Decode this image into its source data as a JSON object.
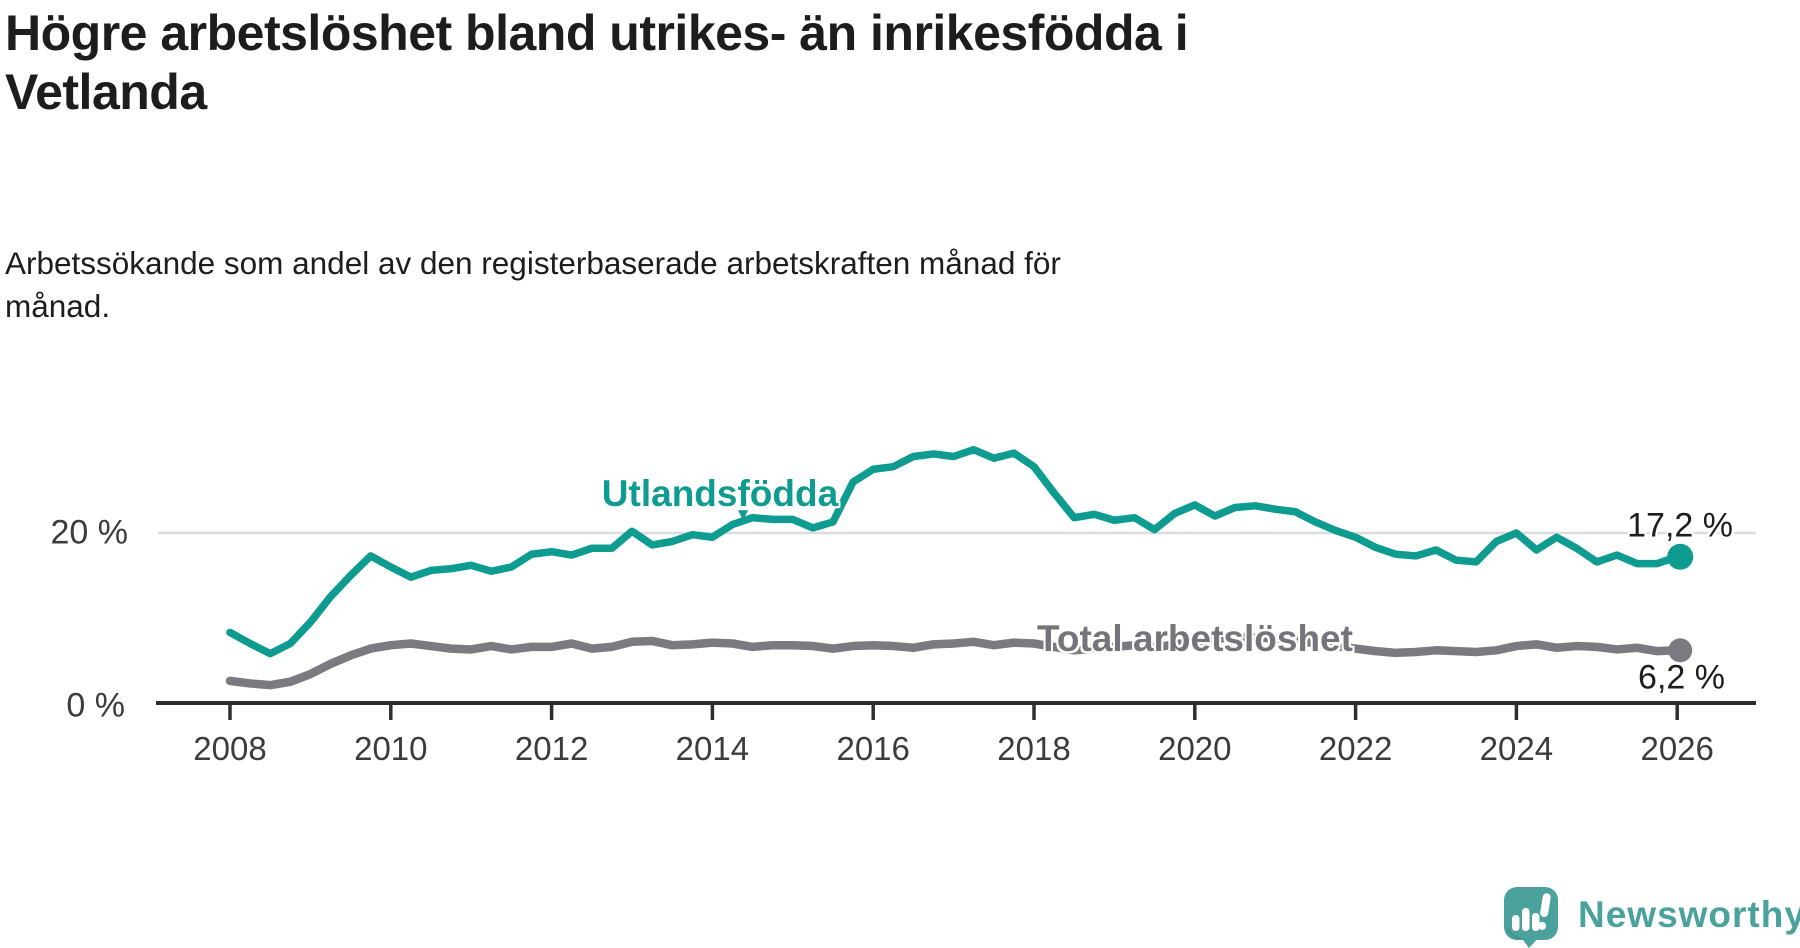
{
  "header": {
    "title": "Högre arbetslöshet bland utrikes- än inrikesfödda i\nVetlanda",
    "subtitle": "Arbetssökande som andel av den registerbaserade arbetskraften månad för\nmånad."
  },
  "chart_data": {
    "type": "line",
    "title": "Högre arbetslöshet bland utrikes- än inrikesfödda i Vetlanda",
    "xlabel": "",
    "ylabel": "Arbetssökande som andel av den registerbaserade arbetskraften",
    "x_unit": "decimal year, monthly curve approximated quarterly",
    "x": [
      2008.0,
      2008.25,
      2008.5,
      2008.75,
      2009.0,
      2009.25,
      2009.5,
      2009.75,
      2010.0,
      2010.25,
      2010.5,
      2010.75,
      2011.0,
      2011.25,
      2011.5,
      2011.75,
      2012.0,
      2012.25,
      2012.5,
      2012.75,
      2013.0,
      2013.25,
      2013.5,
      2013.75,
      2014.0,
      2014.25,
      2014.5,
      2014.75,
      2015.0,
      2015.25,
      2015.5,
      2015.75,
      2016.0,
      2016.25,
      2016.5,
      2016.75,
      2017.0,
      2017.25,
      2017.5,
      2017.75,
      2018.0,
      2018.25,
      2018.5,
      2018.75,
      2019.0,
      2019.25,
      2019.5,
      2019.75,
      2020.0,
      2020.25,
      2020.5,
      2020.75,
      2021.0,
      2021.25,
      2021.5,
      2021.75,
      2022.0,
      2022.25,
      2022.5,
      2022.75,
      2023.0,
      2023.25,
      2023.5,
      2023.75,
      2024.0,
      2024.25,
      2024.5,
      2024.75,
      2025.0,
      2025.25,
      2025.5,
      2025.75,
      2026.0
    ],
    "series": [
      {
        "name": "Utlandsfödda",
        "label_text": "Utlandsfödda",
        "color": "#0d9c8f",
        "end_label": "17,2 %",
        "last_value": 17.2,
        "values": [
          8.3,
          7.0,
          5.8,
          7.0,
          9.5,
          12.5,
          15.0,
          17.3,
          16.0,
          14.8,
          15.6,
          15.8,
          16.2,
          15.5,
          16.0,
          17.5,
          17.8,
          17.4,
          18.2,
          18.2,
          20.2,
          18.6,
          19.0,
          19.8,
          19.5,
          21.0,
          21.8,
          21.6,
          21.6,
          20.6,
          21.3,
          26.0,
          27.5,
          27.8,
          29.0,
          29.3,
          29.0,
          29.8,
          28.8,
          29.4,
          27.8,
          24.7,
          21.8,
          22.2,
          21.5,
          21.8,
          20.4,
          22.3,
          23.3,
          22.0,
          23.0,
          23.2,
          22.8,
          22.5,
          21.3,
          20.3,
          19.5,
          18.3,
          17.5,
          17.3,
          18.0,
          16.8,
          16.6,
          19.0,
          20.0,
          18.0,
          19.5,
          18.2,
          16.6,
          17.4,
          16.4,
          16.4,
          17.2
        ]
      },
      {
        "name": "Total arbetslöshet",
        "label_text": "Total arbetslöshet",
        "color": "#7b7a81",
        "end_label": "6,2 %",
        "last_value": 6.2,
        "values": [
          2.6,
          2.3,
          2.1,
          2.5,
          3.4,
          4.6,
          5.6,
          6.4,
          6.8,
          7.0,
          6.7,
          6.4,
          6.3,
          6.7,
          6.3,
          6.6,
          6.6,
          7.0,
          6.4,
          6.6,
          7.2,
          7.3,
          6.8,
          6.9,
          7.1,
          7.0,
          6.6,
          6.8,
          6.8,
          6.7,
          6.4,
          6.7,
          6.8,
          6.7,
          6.5,
          6.9,
          7.0,
          7.2,
          6.8,
          7.1,
          7.0,
          6.6,
          6.2,
          6.4,
          6.6,
          6.8,
          6.5,
          6.9,
          7.2,
          7.5,
          7.8,
          7.7,
          7.6,
          7.4,
          7.0,
          6.7,
          6.4,
          6.1,
          5.9,
          6.0,
          6.2,
          6.1,
          6.0,
          6.2,
          6.7,
          6.9,
          6.5,
          6.7,
          6.6,
          6.3,
          6.5,
          6.1,
          6.2
        ]
      }
    ],
    "x_ticks": [
      2008,
      2010,
      2012,
      2014,
      2016,
      2018,
      2020,
      2022,
      2024,
      2026
    ],
    "y_ticks": [
      {
        "value": 20,
        "label": "20 %"
      },
      {
        "value": 0,
        "label": "0 %"
      }
    ],
    "ylim": [
      0,
      31
    ],
    "xlim": [
      2007.1,
      2026.98
    ],
    "grid": "single light horizontal gridline at 20 %",
    "legend": "inline labels attached to lines"
  },
  "colors": {
    "teal_line": "#0d9c8f",
    "gray_line": "#7b7a81",
    "gray_label": "#75747b",
    "axis_line": "#2e2e2e",
    "gridline": "#dcdcdc",
    "axis_text": "#3c3c3b",
    "text": "#1d1d1b",
    "logo_teal": "#4ba29c"
  },
  "branding": {
    "logo_text": "Newsworthy"
  },
  "icons": {
    "label_pointer": "▼"
  }
}
